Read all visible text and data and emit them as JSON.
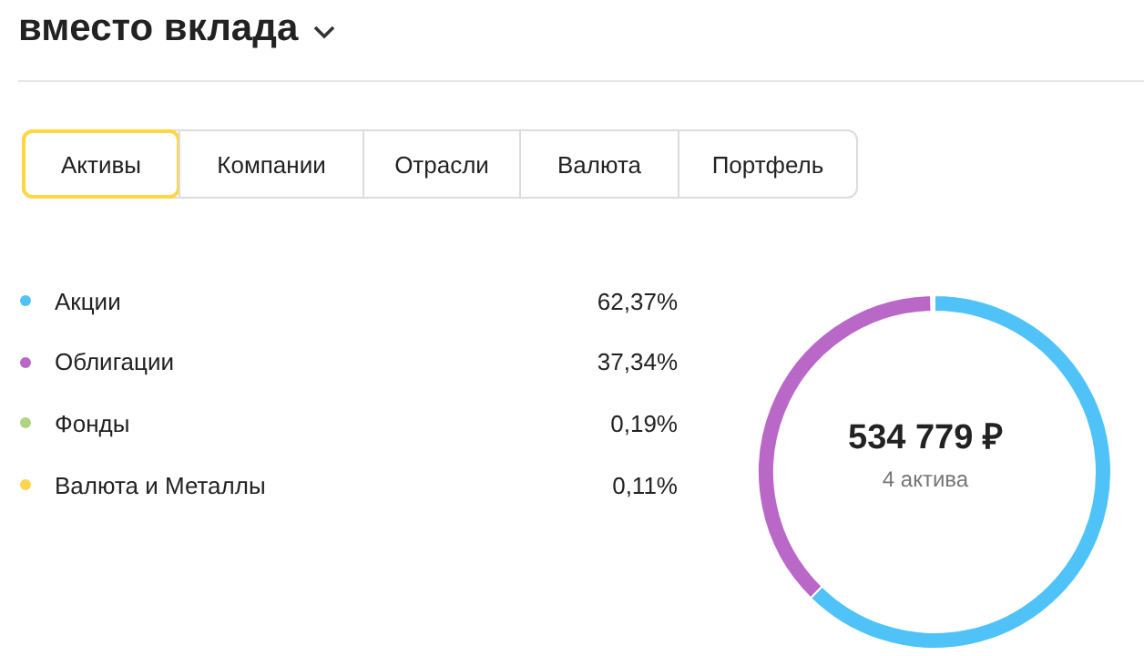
{
  "chart_data": {
    "type": "donut",
    "title": "вместо вклада",
    "categories": [
      "Акции",
      "Облигации",
      "Фонды",
      "Валюта и Металлы"
    ],
    "values": [
      62.37,
      37.34,
      0.19,
      0.11
    ],
    "value_labels": [
      "62,37%",
      "37,34%",
      "0,19%",
      "0,11%"
    ],
    "colors": [
      "#4fc3f7",
      "#ba68c8",
      "#aed581",
      "#ffd54f"
    ],
    "legend": "left",
    "annotations": [
      "Активы",
      "Компании",
      "Отрасли",
      "Валюта",
      "Портфель",
      "534 779 ₽",
      "4 актива"
    ]
  }
}
